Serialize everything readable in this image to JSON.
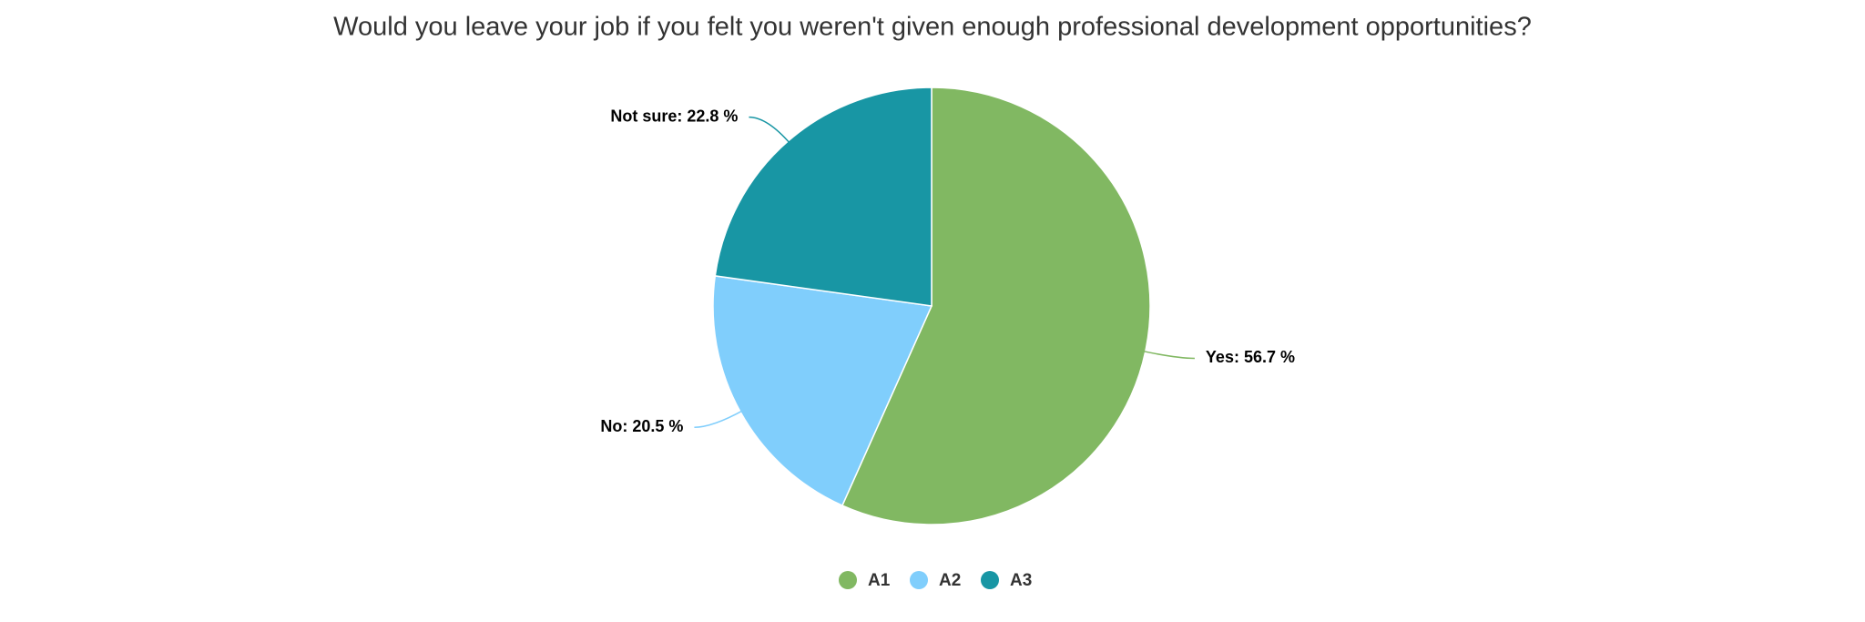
{
  "chart_data": {
    "type": "pie",
    "title": "Would you leave your job if you felt you weren't given enough professional development opportunities?",
    "categories": [
      "A1",
      "A2",
      "A3"
    ],
    "values": [
      56.7,
      20.5,
      22.8
    ],
    "value_labels": [
      "Yes: 56.7 %",
      "No: 20.5 %",
      "Not sure: 22.8 %"
    ],
    "colors": [
      "#81b862",
      "#80cefc",
      "#1896a4"
    ],
    "legend": "bottom"
  }
}
